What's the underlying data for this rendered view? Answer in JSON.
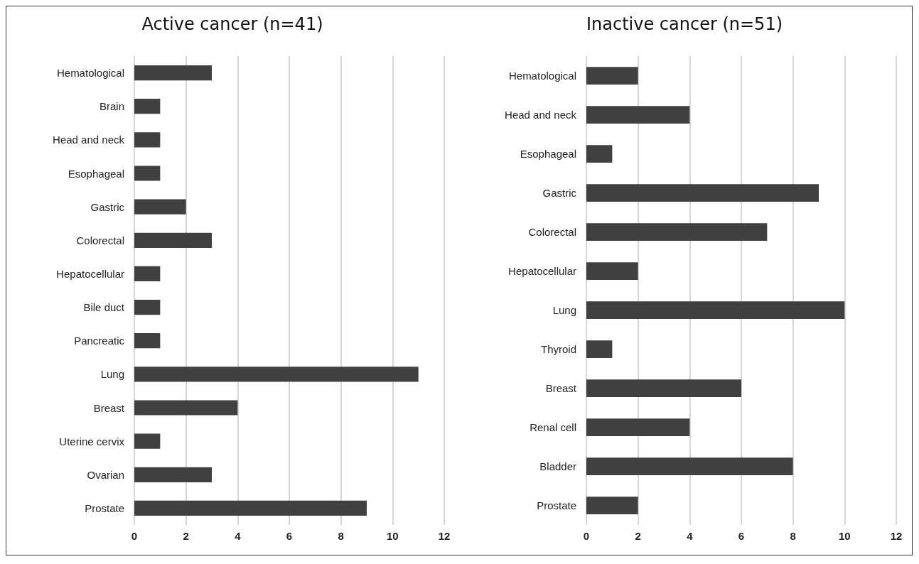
{
  "chart_data": [
    {
      "type": "bar",
      "title": "Active cancer (n=41)",
      "orientation": "horizontal",
      "categories": [
        "Hematological",
        "Brain",
        "Head and neck",
        "Esophageal",
        "Gastric",
        "Colorectal",
        "Hepatocellular",
        "Bile duct",
        "Pancreatic",
        "Lung",
        "Breast",
        "Uterine cervix",
        "Ovarian",
        "Prostate"
      ],
      "values": [
        3,
        1,
        1,
        1,
        2,
        3,
        1,
        1,
        1,
        11,
        4,
        1,
        3,
        9
      ],
      "color": "#404040",
      "xlim": [
        0,
        12
      ],
      "xticks": [
        0,
        2,
        4,
        6,
        8,
        10,
        12
      ],
      "grid": "x"
    },
    {
      "type": "bar",
      "title": "Inactive cancer (n=51)",
      "orientation": "horizontal",
      "categories": [
        "Hematological",
        "Head and neck",
        "Esophageal",
        "Gastric",
        "Colorectal",
        "Hepatocellular",
        "Lung",
        "Thyroid",
        "Breast",
        "Renal cell",
        "Bladder",
        "Prostate"
      ],
      "values": [
        2,
        4,
        1,
        9,
        7,
        2,
        10,
        1,
        6,
        4,
        8,
        2
      ],
      "color": "#404040",
      "xlim": [
        0,
        12
      ],
      "xticks": [
        0,
        2,
        4,
        6,
        8,
        10,
        12
      ],
      "grid": "x"
    }
  ]
}
